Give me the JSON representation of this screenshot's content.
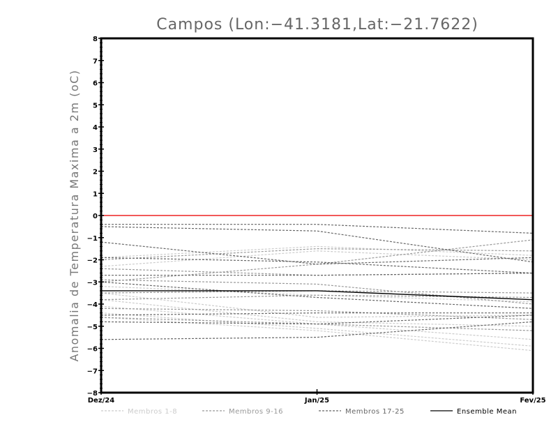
{
  "chart_data": {
    "type": "line",
    "title": "Campos (Lon:−41.3181,Lat:−21.7622)",
    "ylabel": "Anomalia de Temperatura Maxima a 2m (oC)",
    "xlabel": "",
    "categories": [
      "Dez/24",
      "Jan/25",
      "Fev/25"
    ],
    "ylim": [
      -8,
      8
    ],
    "yticks": [
      "8",
      "7",
      "6",
      "5",
      "4",
      "3",
      "2",
      "1",
      "0",
      "−1",
      "−2",
      "−3",
      "−4",
      "−5",
      "−6",
      "−7",
      "−8"
    ],
    "reference_line": {
      "value": 0,
      "color": "#ee2222"
    },
    "grid": false,
    "legend_position": "bottom",
    "series_groups": [
      {
        "name": "Membros 1-8",
        "color": "#cccccc",
        "dashed": true,
        "members": [
          [
            -1.9,
            -1.4,
            -1.8
          ],
          [
            -2.3,
            -1.6,
            -2.0
          ],
          [
            -3.5,
            -4.6,
            -4.5
          ],
          [
            -3.8,
            -4.8,
            -5.0
          ],
          [
            -4.1,
            -4.9,
            -5.6
          ],
          [
            -4.4,
            -5.1,
            -5.9
          ],
          [
            -4.6,
            -5.2,
            -6.1
          ],
          [
            -3.2,
            -3.6,
            -3.9
          ]
        ]
      },
      {
        "name": "Membros 9-16",
        "color": "#999999",
        "dashed": true,
        "members": [
          [
            -2.4,
            -2.7,
            -2.6
          ],
          [
            -3.0,
            -2.2,
            -1.1
          ],
          [
            -2.0,
            -1.5,
            -1.6
          ],
          [
            -3.5,
            -3.4,
            -3.5
          ],
          [
            -4.2,
            -4.3,
            -4.7
          ],
          [
            -4.6,
            -4.9,
            -5.2
          ],
          [
            -3.8,
            -3.6,
            -3.7
          ],
          [
            -2.9,
            -3.1,
            -4.0
          ]
        ]
      },
      {
        "name": "Membros 17-25",
        "color": "#666666",
        "dashed": true,
        "members": [
          [
            -0.4,
            -0.4,
            -0.8
          ],
          [
            -0.5,
            -0.7,
            -2.1
          ],
          [
            -1.2,
            -2.2,
            -1.9
          ],
          [
            -1.9,
            -2.1,
            -2.6
          ],
          [
            -2.7,
            -2.7,
            -2.6
          ],
          [
            -3.0,
            -3.7,
            -4.2
          ],
          [
            -4.8,
            -4.9,
            -4.5
          ],
          [
            -5.6,
            -5.5,
            -4.8
          ],
          [
            -4.5,
            -4.4,
            -4.4
          ]
        ]
      },
      {
        "name": "Ensemble Mean",
        "color": "#000000",
        "dashed": false,
        "members": [
          [
            -3.4,
            -3.4,
            -3.8
          ]
        ]
      }
    ]
  }
}
